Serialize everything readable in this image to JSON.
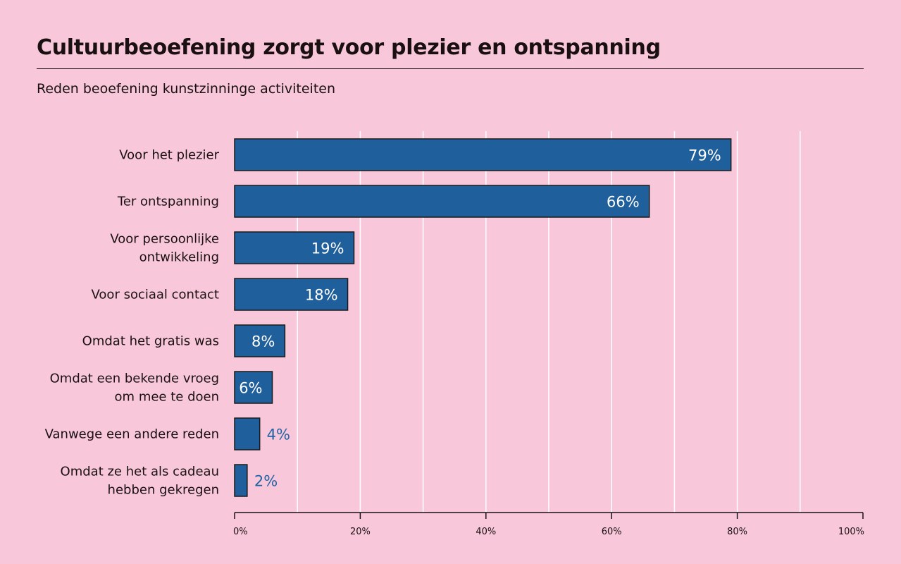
{
  "header": {
    "title": "Cultuurbeoefening zorgt voor plezier en ontspanning",
    "subtitle": "Reden beoefening kunstzinninge activiteiten"
  },
  "colors": {
    "background": "#f8c8da",
    "bar": "#1f5f9b",
    "bar_outline": "#1a1a1a",
    "gridline": "#ffffff",
    "label_outside": "#2263a5"
  },
  "chart_data": {
    "type": "bar",
    "orientation": "horizontal",
    "title": "Cultuurbeoefening zorgt voor plezier en ontspanning",
    "subtitle": "Reden beoefening kunstzinninge activiteiten",
    "categories": [
      [
        "Voor het plezier"
      ],
      [
        "Ter ontspanning"
      ],
      [
        "Voor persoonlijke",
        "ontwikkeling"
      ],
      [
        "Voor sociaal contact"
      ],
      [
        "Omdat het gratis was"
      ],
      [
        "Omdat een bekende vroeg",
        "om mee te doen"
      ],
      [
        "Vanwege een andere reden"
      ],
      [
        "Omdat ze het als cadeau",
        "hebben gekregen"
      ]
    ],
    "values": [
      79,
      66,
      19,
      18,
      8,
      6,
      4,
      2
    ],
    "value_labels": [
      "79%",
      "66%",
      "19%",
      "18%",
      "8%",
      "6%",
      "4%",
      "2%"
    ],
    "xlim": [
      0,
      100
    ],
    "xticks": [
      0,
      20,
      40,
      60,
      80,
      100
    ],
    "xtick_labels": [
      "0%",
      "20%",
      "40%",
      "60%",
      "80%",
      "100%"
    ],
    "gridlines": [
      10,
      20,
      30,
      40,
      50,
      60,
      70,
      80,
      90
    ],
    "xlabel": "",
    "ylabel": ""
  }
}
